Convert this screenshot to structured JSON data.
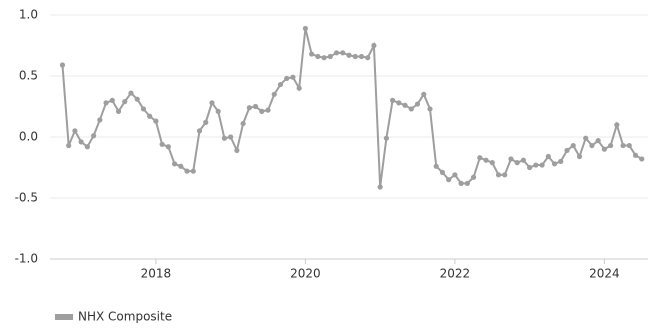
{
  "chart_data": {
    "type": "line",
    "x": [
      "2016-10",
      "2016-11",
      "2016-12",
      "2017-01",
      "2017-02",
      "2017-03",
      "2017-04",
      "2017-05",
      "2017-06",
      "2017-07",
      "2017-08",
      "2017-09",
      "2017-10",
      "2017-11",
      "2017-12",
      "2018-01",
      "2018-02",
      "2018-03",
      "2018-04",
      "2018-05",
      "2018-06",
      "2018-07",
      "2018-08",
      "2018-09",
      "2018-10",
      "2018-11",
      "2018-12",
      "2019-01",
      "2019-02",
      "2019-03",
      "2019-04",
      "2019-05",
      "2019-06",
      "2019-07",
      "2019-08",
      "2019-09",
      "2019-10",
      "2019-11",
      "2019-12",
      "2020-01",
      "2020-02",
      "2020-03",
      "2020-04",
      "2020-05",
      "2020-06",
      "2020-07",
      "2020-08",
      "2020-09",
      "2020-10",
      "2020-11",
      "2020-12",
      "2021-01",
      "2021-02",
      "2021-03",
      "2021-04",
      "2021-05",
      "2021-06",
      "2021-07",
      "2021-08",
      "2021-09",
      "2021-10",
      "2021-11",
      "2021-12",
      "2022-01",
      "2022-02",
      "2022-03",
      "2022-04",
      "2022-05",
      "2022-06",
      "2022-07",
      "2022-08",
      "2022-09",
      "2022-10",
      "2022-11",
      "2022-12",
      "2023-01",
      "2023-02",
      "2023-03",
      "2023-04",
      "2023-05",
      "2023-06",
      "2023-07",
      "2023-08",
      "2023-09",
      "2023-10",
      "2023-11",
      "2023-12",
      "2024-01",
      "2024-02",
      "2024-03",
      "2024-04",
      "2024-05",
      "2024-06",
      "2024-07"
    ],
    "series": [
      {
        "name": "NHX Composite",
        "color": "#9e9e9e",
        "values": [
          0.59,
          -0.07,
          0.05,
          -0.04,
          -0.08,
          0.01,
          0.14,
          0.28,
          0.3,
          0.21,
          0.29,
          0.36,
          0.31,
          0.23,
          0.17,
          0.13,
          -0.06,
          -0.08,
          -0.22,
          -0.24,
          -0.28,
          -0.28,
          0.05,
          0.12,
          0.28,
          0.21,
          -0.01,
          0.0,
          -0.11,
          0.11,
          0.24,
          0.25,
          0.21,
          0.22,
          0.35,
          0.43,
          0.48,
          0.49,
          0.4,
          0.89,
          0.68,
          0.66,
          0.65,
          0.66,
          0.69,
          0.69,
          0.67,
          0.66,
          0.66,
          0.65,
          0.75,
          -0.41,
          -0.01,
          0.3,
          0.28,
          0.26,
          0.23,
          0.27,
          0.35,
          0.23,
          -0.24,
          -0.29,
          -0.35,
          -0.31,
          -0.38,
          -0.38,
          -0.33,
          -0.17,
          -0.19,
          -0.21,
          -0.31,
          -0.31,
          -0.18,
          -0.21,
          -0.19,
          -0.25,
          -0.23,
          -0.23,
          -0.16,
          -0.22,
          -0.2,
          -0.11,
          -0.07,
          -0.16,
          -0.01,
          -0.07,
          -0.03,
          -0.1,
          -0.07,
          0.1,
          -0.07,
          -0.07,
          -0.15,
          -0.18
        ]
      }
    ],
    "xlim": [
      "2016-08",
      "2024-08"
    ],
    "xticks": [
      "2018",
      "2020",
      "2022",
      "2024"
    ],
    "ylim": [
      -1,
      1
    ],
    "yticks": [
      {
        "value": 1,
        "label": "1.0"
      },
      {
        "value": 0.5,
        "label": "0.5"
      },
      {
        "value": 0,
        "label": "0.0"
      },
      {
        "value": -0.5,
        "label": "-0.5"
      },
      {
        "value": -1,
        "label": "-1.0"
      }
    ],
    "grid": true,
    "legend": "bottom-left"
  }
}
